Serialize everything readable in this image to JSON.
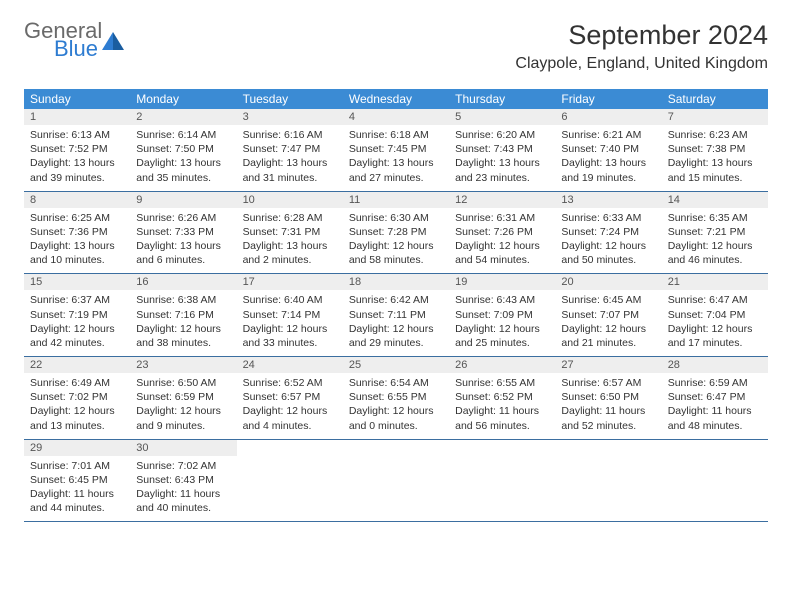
{
  "logo": {
    "general": "General",
    "blue": "Blue"
  },
  "title": "September 2024",
  "location": "Claypole, England, United Kingdom",
  "colors": {
    "header_bg": "#3b8bd4",
    "header_text": "#ffffff",
    "daynum_bg": "#eeeeee",
    "border": "#3b6ea0",
    "text": "#333333",
    "logo_gray": "#6a6a6a",
    "logo_blue": "#2e7cd1"
  },
  "dayNames": [
    "Sunday",
    "Monday",
    "Tuesday",
    "Wednesday",
    "Thursday",
    "Friday",
    "Saturday"
  ],
  "weeks": [
    [
      {
        "n": "1",
        "sr": "Sunrise: 6:13 AM",
        "ss": "Sunset: 7:52 PM",
        "dl": "Daylight: 13 hours and 39 minutes."
      },
      {
        "n": "2",
        "sr": "Sunrise: 6:14 AM",
        "ss": "Sunset: 7:50 PM",
        "dl": "Daylight: 13 hours and 35 minutes."
      },
      {
        "n": "3",
        "sr": "Sunrise: 6:16 AM",
        "ss": "Sunset: 7:47 PM",
        "dl": "Daylight: 13 hours and 31 minutes."
      },
      {
        "n": "4",
        "sr": "Sunrise: 6:18 AM",
        "ss": "Sunset: 7:45 PM",
        "dl": "Daylight: 13 hours and 27 minutes."
      },
      {
        "n": "5",
        "sr": "Sunrise: 6:20 AM",
        "ss": "Sunset: 7:43 PM",
        "dl": "Daylight: 13 hours and 23 minutes."
      },
      {
        "n": "6",
        "sr": "Sunrise: 6:21 AM",
        "ss": "Sunset: 7:40 PM",
        "dl": "Daylight: 13 hours and 19 minutes."
      },
      {
        "n": "7",
        "sr": "Sunrise: 6:23 AM",
        "ss": "Sunset: 7:38 PM",
        "dl": "Daylight: 13 hours and 15 minutes."
      }
    ],
    [
      {
        "n": "8",
        "sr": "Sunrise: 6:25 AM",
        "ss": "Sunset: 7:36 PM",
        "dl": "Daylight: 13 hours and 10 minutes."
      },
      {
        "n": "9",
        "sr": "Sunrise: 6:26 AM",
        "ss": "Sunset: 7:33 PM",
        "dl": "Daylight: 13 hours and 6 minutes."
      },
      {
        "n": "10",
        "sr": "Sunrise: 6:28 AM",
        "ss": "Sunset: 7:31 PM",
        "dl": "Daylight: 13 hours and 2 minutes."
      },
      {
        "n": "11",
        "sr": "Sunrise: 6:30 AM",
        "ss": "Sunset: 7:28 PM",
        "dl": "Daylight: 12 hours and 58 minutes."
      },
      {
        "n": "12",
        "sr": "Sunrise: 6:31 AM",
        "ss": "Sunset: 7:26 PM",
        "dl": "Daylight: 12 hours and 54 minutes."
      },
      {
        "n": "13",
        "sr": "Sunrise: 6:33 AM",
        "ss": "Sunset: 7:24 PM",
        "dl": "Daylight: 12 hours and 50 minutes."
      },
      {
        "n": "14",
        "sr": "Sunrise: 6:35 AM",
        "ss": "Sunset: 7:21 PM",
        "dl": "Daylight: 12 hours and 46 minutes."
      }
    ],
    [
      {
        "n": "15",
        "sr": "Sunrise: 6:37 AM",
        "ss": "Sunset: 7:19 PM",
        "dl": "Daylight: 12 hours and 42 minutes."
      },
      {
        "n": "16",
        "sr": "Sunrise: 6:38 AM",
        "ss": "Sunset: 7:16 PM",
        "dl": "Daylight: 12 hours and 38 minutes."
      },
      {
        "n": "17",
        "sr": "Sunrise: 6:40 AM",
        "ss": "Sunset: 7:14 PM",
        "dl": "Daylight: 12 hours and 33 minutes."
      },
      {
        "n": "18",
        "sr": "Sunrise: 6:42 AM",
        "ss": "Sunset: 7:11 PM",
        "dl": "Daylight: 12 hours and 29 minutes."
      },
      {
        "n": "19",
        "sr": "Sunrise: 6:43 AM",
        "ss": "Sunset: 7:09 PM",
        "dl": "Daylight: 12 hours and 25 minutes."
      },
      {
        "n": "20",
        "sr": "Sunrise: 6:45 AM",
        "ss": "Sunset: 7:07 PM",
        "dl": "Daylight: 12 hours and 21 minutes."
      },
      {
        "n": "21",
        "sr": "Sunrise: 6:47 AM",
        "ss": "Sunset: 7:04 PM",
        "dl": "Daylight: 12 hours and 17 minutes."
      }
    ],
    [
      {
        "n": "22",
        "sr": "Sunrise: 6:49 AM",
        "ss": "Sunset: 7:02 PM",
        "dl": "Daylight: 12 hours and 13 minutes."
      },
      {
        "n": "23",
        "sr": "Sunrise: 6:50 AM",
        "ss": "Sunset: 6:59 PM",
        "dl": "Daylight: 12 hours and 9 minutes."
      },
      {
        "n": "24",
        "sr": "Sunrise: 6:52 AM",
        "ss": "Sunset: 6:57 PM",
        "dl": "Daylight: 12 hours and 4 minutes."
      },
      {
        "n": "25",
        "sr": "Sunrise: 6:54 AM",
        "ss": "Sunset: 6:55 PM",
        "dl": "Daylight: 12 hours and 0 minutes."
      },
      {
        "n": "26",
        "sr": "Sunrise: 6:55 AM",
        "ss": "Sunset: 6:52 PM",
        "dl": "Daylight: 11 hours and 56 minutes."
      },
      {
        "n": "27",
        "sr": "Sunrise: 6:57 AM",
        "ss": "Sunset: 6:50 PM",
        "dl": "Daylight: 11 hours and 52 minutes."
      },
      {
        "n": "28",
        "sr": "Sunrise: 6:59 AM",
        "ss": "Sunset: 6:47 PM",
        "dl": "Daylight: 11 hours and 48 minutes."
      }
    ],
    [
      {
        "n": "29",
        "sr": "Sunrise: 7:01 AM",
        "ss": "Sunset: 6:45 PM",
        "dl": "Daylight: 11 hours and 44 minutes."
      },
      {
        "n": "30",
        "sr": "Sunrise: 7:02 AM",
        "ss": "Sunset: 6:43 PM",
        "dl": "Daylight: 11 hours and 40 minutes."
      },
      null,
      null,
      null,
      null,
      null
    ]
  ]
}
